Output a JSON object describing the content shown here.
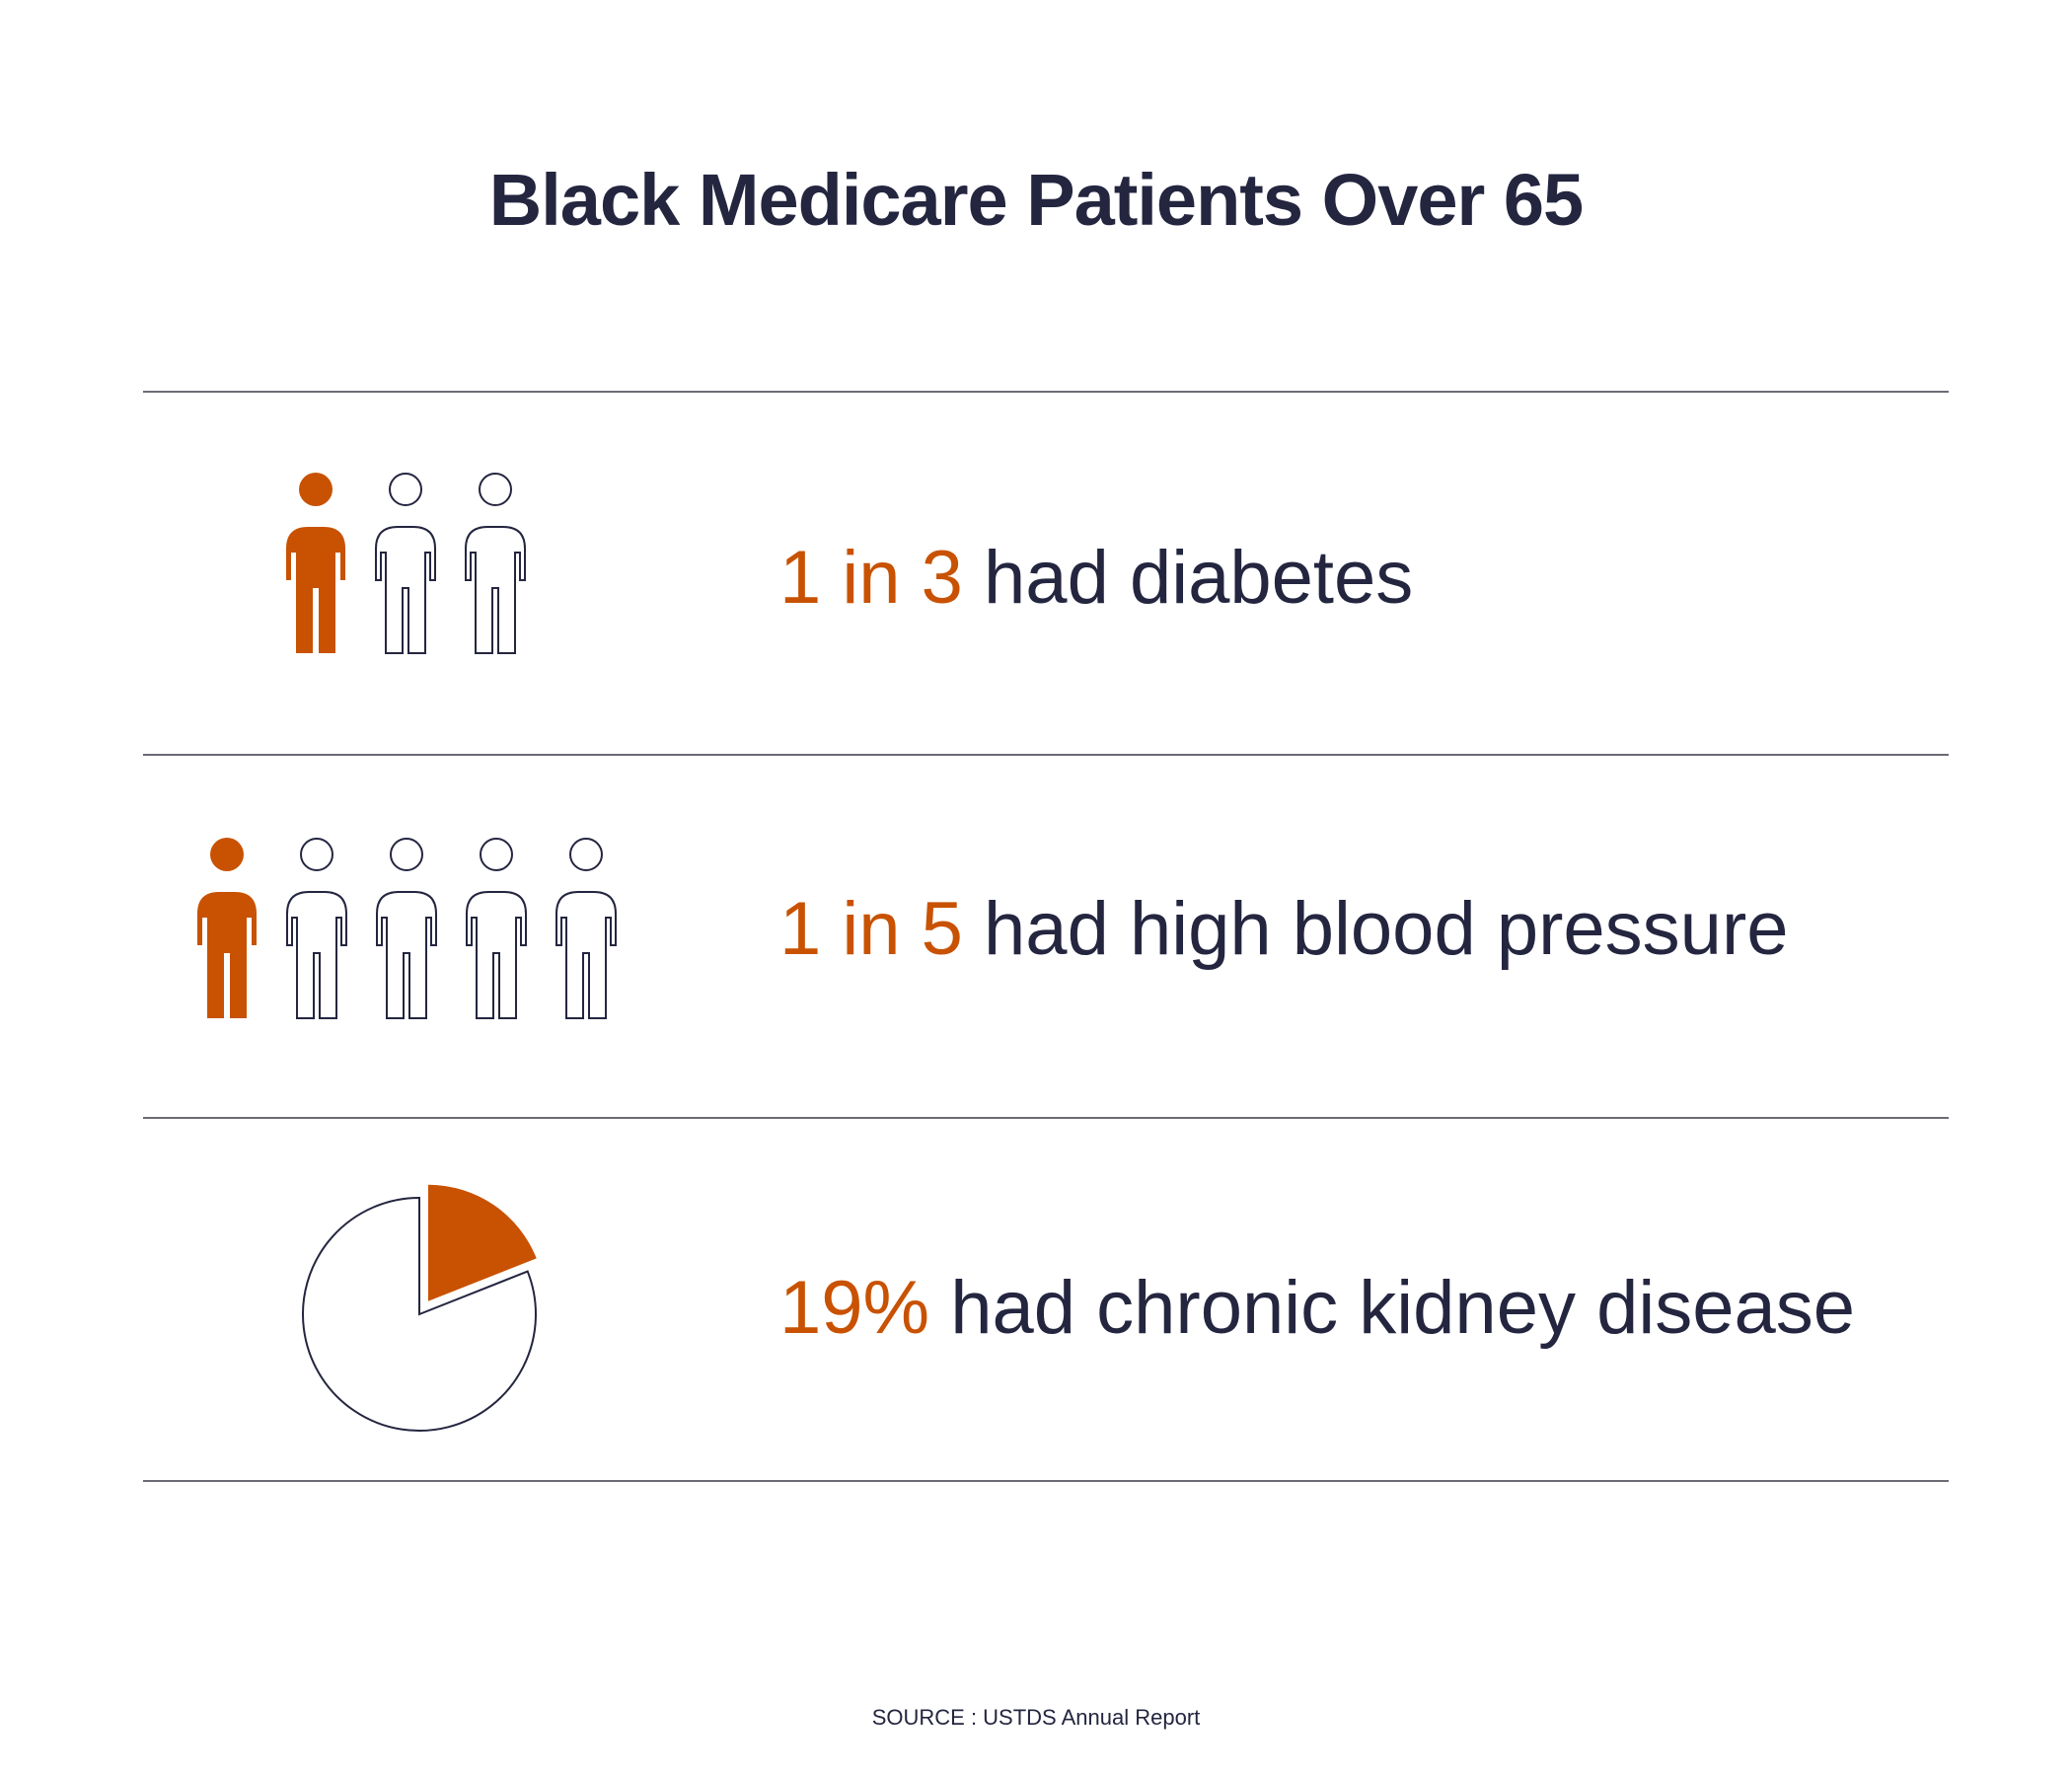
{
  "title": "Black Medicare Patients Over 65",
  "colors": {
    "accent": "#c85202",
    "text": "#242640",
    "rule": "#6b6b75"
  },
  "stats": [
    {
      "highlight": "1 in 3",
      "text": " had diabetes",
      "icon": "people-1-in-3-icon",
      "highlighted_people": 1,
      "total_people": 3
    },
    {
      "highlight": "1 in 5",
      "text": " had high blood pressure",
      "icon": "people-1-in-5-icon",
      "highlighted_people": 1,
      "total_people": 5
    },
    {
      "highlight": "19%",
      "text": " had chronic kidney disease",
      "icon": "pie-19-percent-icon",
      "pie_fraction": 0.19
    }
  ],
  "source": "SOURCE : USTDS Annual Report"
}
